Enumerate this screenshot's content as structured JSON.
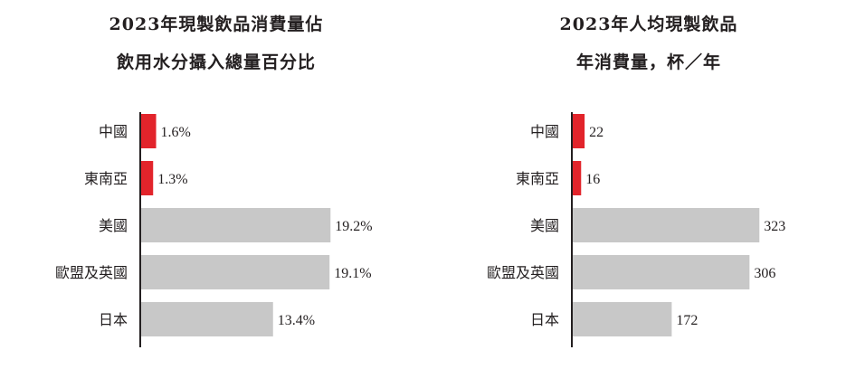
{
  "colors": {
    "highlight": "#e2242b",
    "neutral": "#c8c8c8",
    "axis": "#231f20"
  },
  "chart_data": [
    {
      "type": "bar",
      "orientation": "horizontal",
      "title_line1": "2023年現製飲品消費量佔",
      "title_line2": "飲用水分攝入總量百分比",
      "categories": [
        "中國",
        "東南亞",
        "美國",
        "歐盟及英國",
        "日本"
      ],
      "values": [
        1.6,
        1.3,
        19.2,
        19.1,
        13.4
      ],
      "value_labels": [
        "1.6%",
        "1.3%",
        "19.2%",
        "19.1%",
        "13.4%"
      ],
      "highlight": [
        true,
        true,
        false,
        false,
        false
      ],
      "xlim": [
        0,
        21
      ],
      "grid": false
    },
    {
      "type": "bar",
      "orientation": "horizontal",
      "title_line1": "2023年人均現製飲品",
      "title_line2": "年消費量，杯／年",
      "categories": [
        "中國",
        "東南亞",
        "美國",
        "歐盟及英國",
        "日本"
      ],
      "values": [
        22,
        16,
        323,
        306,
        172
      ],
      "value_labels": [
        "22",
        "16",
        "323",
        "306",
        "172"
      ],
      "highlight": [
        true,
        true,
        false,
        false,
        false
      ],
      "xlim": [
        0,
        360
      ],
      "grid": false
    }
  ]
}
